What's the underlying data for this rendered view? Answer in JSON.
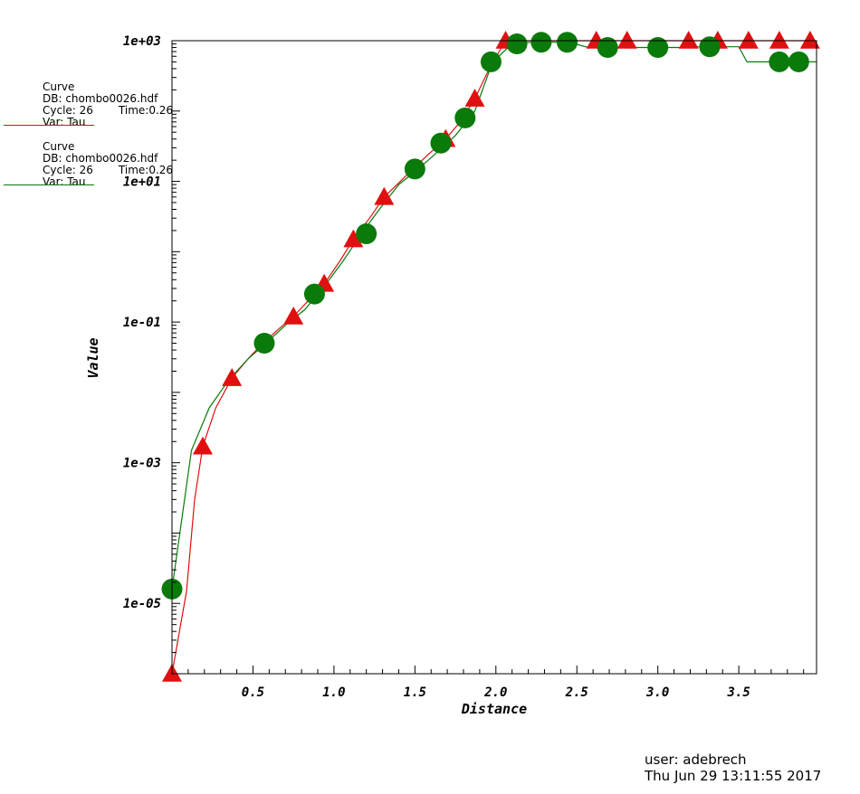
{
  "legend": [
    {
      "title": "Curve",
      "db": "DB: chombo0026.hdf",
      "cycle": "Cycle: 26",
      "time": "Time:0.26",
      "var": "Var: Tau",
      "color": "#e01010"
    },
    {
      "title": "Curve",
      "db": "DB: chombo0026.hdf",
      "cycle": "Cycle: 26",
      "time": "Time:0.26",
      "var": "Var: Tau",
      "color": "#0a7a0a"
    }
  ],
  "footer": {
    "user": "user: adebrech",
    "datetime": "Thu Jun 29 13:11:55 2017"
  },
  "chart_data": {
    "type": "line",
    "title": "",
    "xlabel": "Distance",
    "ylabel": "Value",
    "xlim": [
      0.0,
      3.98
    ],
    "ylim": [
      1e-06,
      1000
    ],
    "y_scale": "log",
    "x_ticks": [
      "0.5",
      "1.0",
      "1.5",
      "2.0",
      "2.5",
      "3.0",
      "3.5"
    ],
    "y_ticks": [
      "1e-05",
      "1e-03",
      "1e-01",
      "1e+01",
      "1e+03"
    ],
    "series": [
      {
        "color": "#e01010",
        "marker": "triangle",
        "x": [
          0.0,
          0.09,
          0.14,
          0.19,
          0.27,
          0.37,
          0.47,
          0.56,
          0.66,
          0.75,
          0.84,
          0.94,
          1.03,
          1.12,
          1.22,
          1.31,
          1.41,
          1.5,
          1.59,
          1.69,
          1.78,
          1.87,
          1.97,
          2.06,
          2.16,
          2.25,
          2.34,
          2.44,
          2.53,
          2.62,
          2.72,
          2.81,
          2.91,
          3.0,
          3.09,
          3.19,
          3.28,
          3.37,
          3.47,
          3.56,
          3.66,
          3.75,
          3.84,
          3.94
        ],
        "y": [
          1e-06,
          1.5e-05,
          0.0003,
          0.0017,
          0.006,
          0.016,
          0.03,
          0.05,
          0.08,
          0.12,
          0.2,
          0.35,
          0.7,
          1.5,
          3,
          6,
          10,
          16,
          25,
          40,
          70,
          150,
          450,
          1000,
          1000,
          1000,
          1000,
          1000,
          1000,
          1000,
          1000,
          1000,
          1000,
          1000,
          1000,
          1000,
          1000,
          1000,
          1000,
          1000,
          1000,
          1000,
          1000,
          1000
        ],
        "marker_x": [
          0.0,
          0.19,
          0.37,
          0.75,
          0.94,
          1.12,
          1.31,
          1.69,
          1.87,
          2.06,
          2.62,
          2.81,
          3.19,
          3.37,
          3.56,
          3.75,
          3.94
        ],
        "marker_y": [
          1e-06,
          0.0017,
          0.016,
          0.12,
          0.35,
          1.5,
          6,
          40,
          150,
          1000,
          1000,
          1000,
          1000,
          1000,
          1000,
          1000,
          1000
        ]
      },
      {
        "color": "#0a7a0a",
        "marker": "circle",
        "x": [
          0.0,
          0.12,
          0.23,
          0.35,
          0.47,
          0.58,
          0.7,
          0.82,
          0.93,
          1.05,
          1.17,
          1.28,
          1.4,
          1.52,
          1.63,
          1.75,
          1.87,
          1.98,
          2.1,
          2.22,
          2.33,
          2.45,
          2.57,
          2.68,
          2.8,
          2.92,
          3.03,
          3.15,
          3.27,
          3.38,
          3.5,
          3.55,
          3.62,
          3.73,
          3.85,
          3.98
        ],
        "y": [
          1.6e-05,
          0.0015,
          0.006,
          0.015,
          0.03,
          0.05,
          0.09,
          0.15,
          0.3,
          0.7,
          1.8,
          4,
          9,
          15,
          25,
          45,
          100,
          500,
          900,
          950,
          950,
          950,
          800,
          800,
          800,
          800,
          800,
          800,
          820,
          820,
          820,
          500,
          500,
          500,
          500,
          500
        ],
        "marker_x": [
          0.0,
          0.57,
          0.88,
          1.2,
          1.5,
          1.66,
          1.81,
          1.97,
          2.13,
          2.28,
          2.44,
          2.69,
          3.0,
          3.32,
          3.75,
          3.87
        ],
        "marker_y": [
          1.6e-05,
          0.05,
          0.25,
          1.8,
          15,
          35,
          80,
          500,
          900,
          950,
          950,
          800,
          800,
          820,
          500,
          500
        ]
      }
    ]
  }
}
